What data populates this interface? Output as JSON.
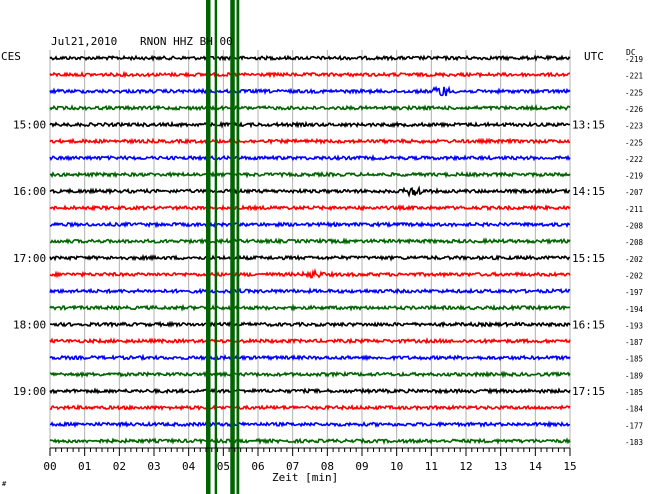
{
  "header": {
    "date": "Jul21,2010",
    "station": "RNON HHZ BH 00",
    "left_tz": "CES",
    "right_tz": "UTC",
    "dc_label": "DC"
  },
  "chart_data": {
    "type": "line",
    "title": "Jul21,2010  RNON HHZ BH 00",
    "xlabel": "Zeit [min]",
    "xlim": [
      0,
      15
    ],
    "x_ticks": [
      "00",
      "01",
      "02",
      "03",
      "04",
      "05",
      "06",
      "07",
      "08",
      "09",
      "10",
      "11",
      "12",
      "13",
      "14",
      "15"
    ],
    "left_hour_labels": [
      {
        "row": 4,
        "label": "15:00"
      },
      {
        "row": 8,
        "label": "16:00"
      },
      {
        "row": 12,
        "label": "17:00"
      },
      {
        "row": 16,
        "label": "18:00"
      },
      {
        "row": 20,
        "label": "19:00"
      }
    ],
    "right_hour_labels": [
      {
        "row": 4,
        "label": "13:15"
      },
      {
        "row": 8,
        "label": "14:15"
      },
      {
        "row": 12,
        "label": "15:15"
      },
      {
        "row": 16,
        "label": "16:15"
      },
      {
        "row": 20,
        "label": "17:15"
      }
    ],
    "row_colors": [
      "#000000",
      "#ff0000",
      "#0000ff",
      "#006400"
    ],
    "dc_values": [
      "-219",
      "-221",
      "-225",
      "-226",
      "-223",
      "-225",
      "-222",
      "-219",
      "-207",
      "-211",
      "-208",
      "-208",
      "-202",
      "-202",
      "-197",
      "-194",
      "-193",
      "-187",
      "-185",
      "-189",
      "-185",
      "-184",
      "-177",
      "-183"
    ],
    "events": [
      {
        "row": 2,
        "minute": 11.3,
        "amplitude": "medium"
      },
      {
        "row": 8,
        "minute": 10.5,
        "amplitude": "medium"
      },
      {
        "row": 13,
        "minute": 7.6,
        "amplitude": "small"
      }
    ],
    "saturated_bands_minutes": [
      [
        4.5,
        4.63
      ],
      [
        4.75,
        4.82
      ],
      [
        5.2,
        5.33
      ],
      [
        5.38,
        5.46
      ]
    ],
    "saturation_color": "#006400"
  }
}
